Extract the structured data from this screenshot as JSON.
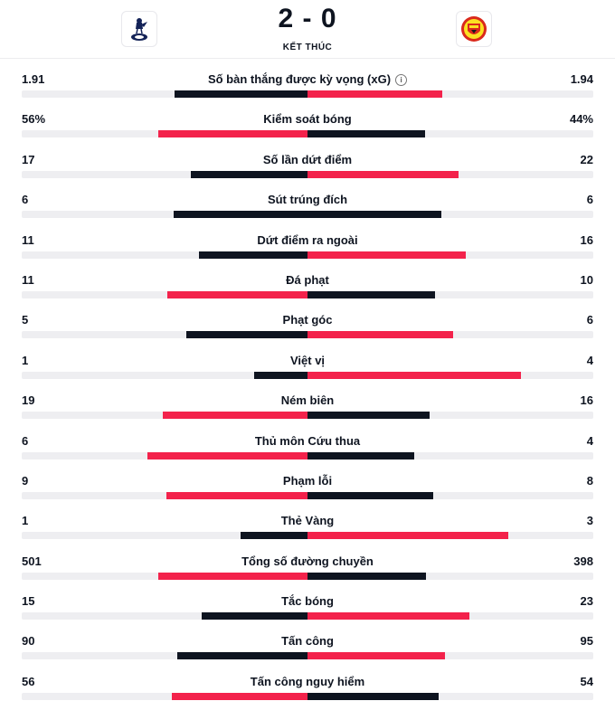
{
  "match": {
    "score": "2 - 0",
    "status": "KẾT THÚC",
    "home_team": {
      "logo_icon": "tottenham-cockerel-icon"
    },
    "away_team": {
      "logo_icon": "manchester-united-crest-icon"
    }
  },
  "colors": {
    "dark": "#0e1420",
    "red": "#f3224b",
    "track": "#eeeef1"
  },
  "stats": [
    {
      "label": "Số bàn thắng được kỳ vọng (xG)",
      "home": "1.91",
      "away": "1.94",
      "home_value": 1.91,
      "away_value": 1.94,
      "info_icon": "info-icon"
    },
    {
      "label": "Kiểm soát bóng",
      "home": "56%",
      "away": "44%",
      "home_value": 56,
      "away_value": 44
    },
    {
      "label": "Số lần dứt điểm",
      "home": "17",
      "away": "22",
      "home_value": 17,
      "away_value": 22
    },
    {
      "label": "Sút trúng đích",
      "home": "6",
      "away": "6",
      "home_value": 6,
      "away_value": 6
    },
    {
      "label": "Dứt điểm ra ngoài",
      "home": "11",
      "away": "16",
      "home_value": 11,
      "away_value": 16
    },
    {
      "label": "Đá phạt",
      "home": "11",
      "away": "10",
      "home_value": 11,
      "away_value": 10
    },
    {
      "label": "Phạt góc",
      "home": "5",
      "away": "6",
      "home_value": 5,
      "away_value": 6
    },
    {
      "label": "Việt vị",
      "home": "1",
      "away": "4",
      "home_value": 1,
      "away_value": 4
    },
    {
      "label": "Ném biên",
      "home": "19",
      "away": "16",
      "home_value": 19,
      "away_value": 16
    },
    {
      "label": "Thủ môn Cứu thua",
      "home": "6",
      "away": "4",
      "home_value": 6,
      "away_value": 4
    },
    {
      "label": "Phạm lỗi",
      "home": "9",
      "away": "8",
      "home_value": 9,
      "away_value": 8
    },
    {
      "label": "Thẻ Vàng",
      "home": "1",
      "away": "3",
      "home_value": 1,
      "away_value": 3
    },
    {
      "label": "Tổng số đường chuyền",
      "home": "501",
      "away": "398",
      "home_value": 501,
      "away_value": 398
    },
    {
      "label": "Tắc bóng",
      "home": "15",
      "away": "23",
      "home_value": 15,
      "away_value": 23
    },
    {
      "label": "Tấn công",
      "home": "90",
      "away": "95",
      "home_value": 90,
      "away_value": 95
    },
    {
      "label": "Tấn công nguy hiểm",
      "home": "56",
      "away": "54",
      "home_value": 56,
      "away_value": 54
    }
  ]
}
